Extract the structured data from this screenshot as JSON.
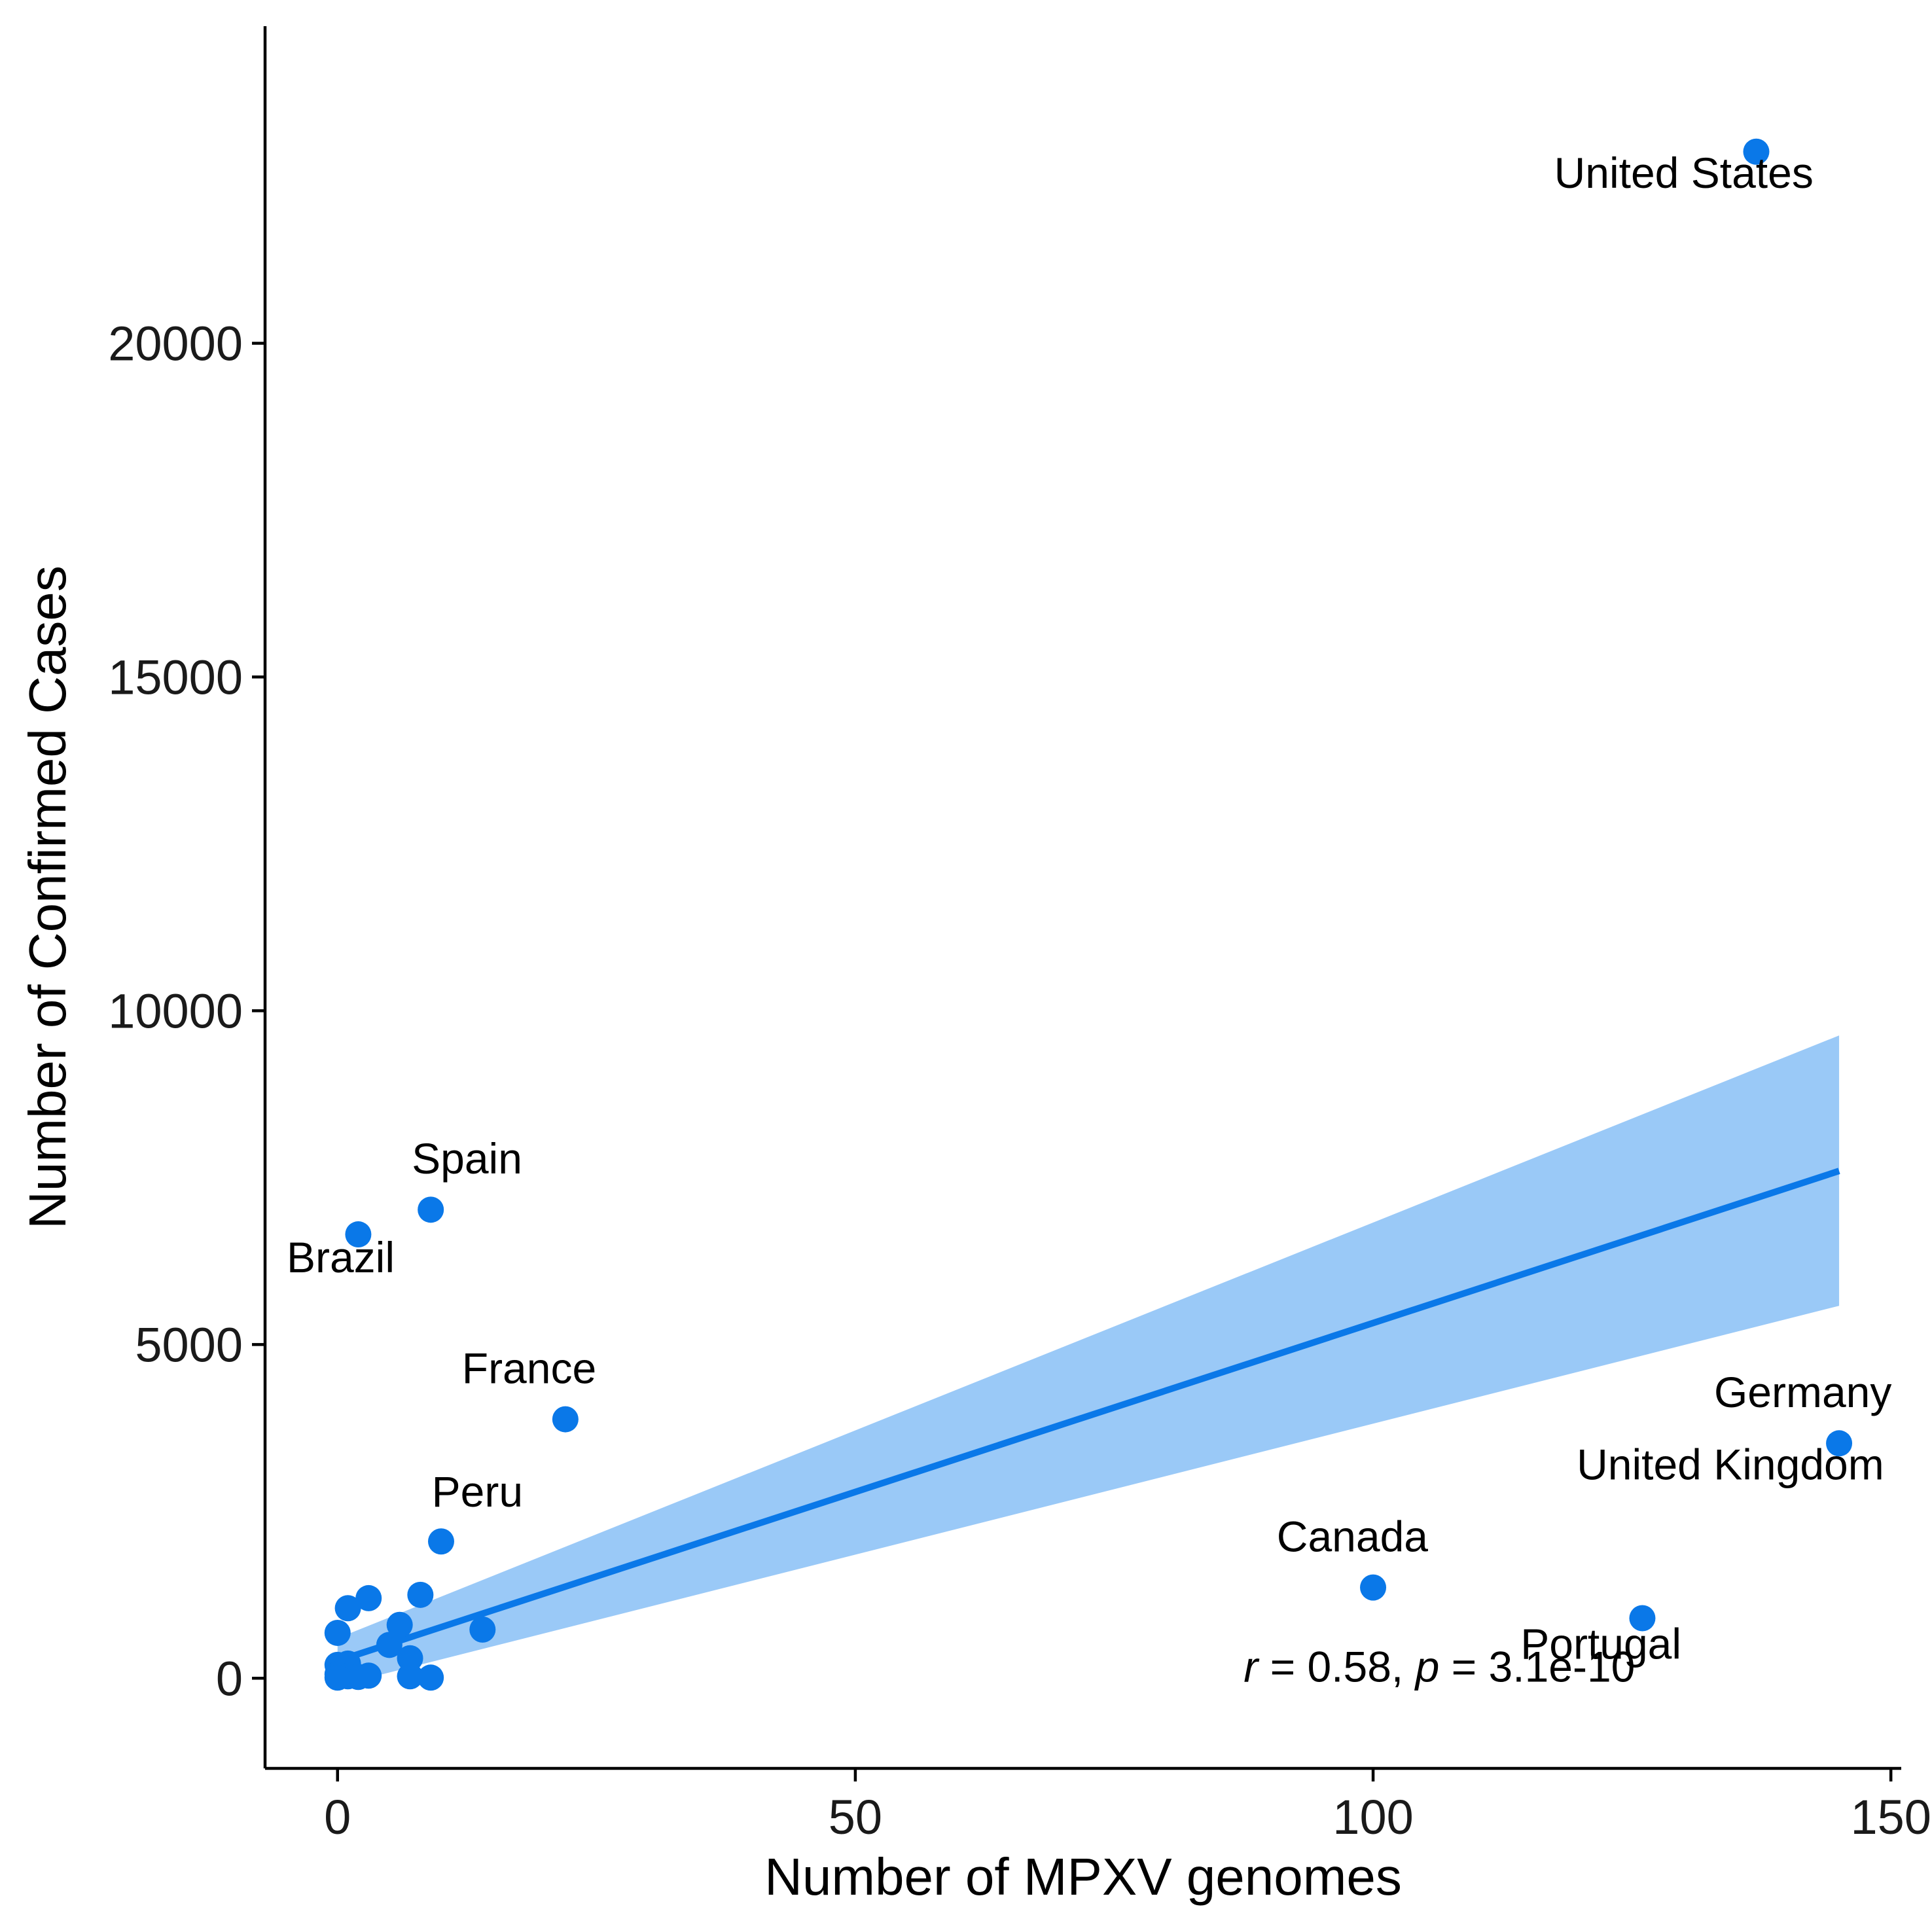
{
  "chart_data": {
    "type": "scatter",
    "xlabel": "Number of MPXV genomes",
    "ylabel": "Number of Confirmed Cases",
    "xlim": [
      -7,
      151
    ],
    "ylim": [
      -1350,
      24750
    ],
    "x_ticks": [
      0,
      50,
      100,
      150
    ],
    "y_ticks": [
      0,
      5000,
      10000,
      15000,
      20000
    ],
    "grid": false,
    "point_color": "#0a78e8",
    "line_color": "#0a78e8",
    "band_color": "#9ac9f7",
    "points": [
      {
        "x": 137,
        "y": 22870
      },
      {
        "x": 9,
        "y": 7020
      },
      {
        "x": 2,
        "y": 6650
      },
      {
        "x": 22,
        "y": 3880
      },
      {
        "x": 145,
        "y": 3520
      },
      {
        "x": 10,
        "y": 2050
      },
      {
        "x": 100,
        "y": 1360
      },
      {
        "x": 126,
        "y": 900
      },
      {
        "x": 3,
        "y": 1200
      },
      {
        "x": 8,
        "y": 1250
      },
      {
        "x": 1,
        "y": 1050
      },
      {
        "x": 0,
        "y": 680
      },
      {
        "x": 6,
        "y": 800
      },
      {
        "x": 14,
        "y": 730
      },
      {
        "x": 5,
        "y": 500
      },
      {
        "x": 7,
        "y": 300
      },
      {
        "x": 0,
        "y": 200
      },
      {
        "x": 1,
        "y": 220
      },
      {
        "x": 0,
        "y": 60
      },
      {
        "x": 1,
        "y": 30
      },
      {
        "x": 2,
        "y": 20
      },
      {
        "x": 3,
        "y": 40
      },
      {
        "x": 7,
        "y": 30
      },
      {
        "x": 9,
        "y": 10
      },
      {
        "x": 0,
        "y": 10
      }
    ],
    "annotations": [
      {
        "text": "United States",
        "x": 130,
        "y": 22330
      },
      {
        "text": "Spain",
        "x": 12.5,
        "y": 7560
      },
      {
        "text": "Brazil",
        "x": 0.3,
        "y": 6080
      },
      {
        "text": "France",
        "x": 18.5,
        "y": 4420
      },
      {
        "text": "Germany",
        "x": 141.5,
        "y": 4060
      },
      {
        "text": "United Kingdom",
        "x": 134.5,
        "y": 2980
      },
      {
        "text": "Peru",
        "x": 13.5,
        "y": 2570
      },
      {
        "text": "Canada",
        "x": 98,
        "y": 1900
      },
      {
        "text": "Portugal",
        "x": 122,
        "y": 290
      }
    ],
    "regression": {
      "x": [
        0,
        145
      ],
      "y": [
        260,
        7600
      ],
      "ci_lower": [
        -110,
        5580
      ],
      "ci_upper": [
        600,
        9630
      ]
    },
    "stats": {
      "r_symbol": "r",
      "r_text": " = 0.58, ",
      "p_symbol": "p",
      "p_text": " = 3.1e-10",
      "x": 87.5,
      "y": -50
    }
  }
}
